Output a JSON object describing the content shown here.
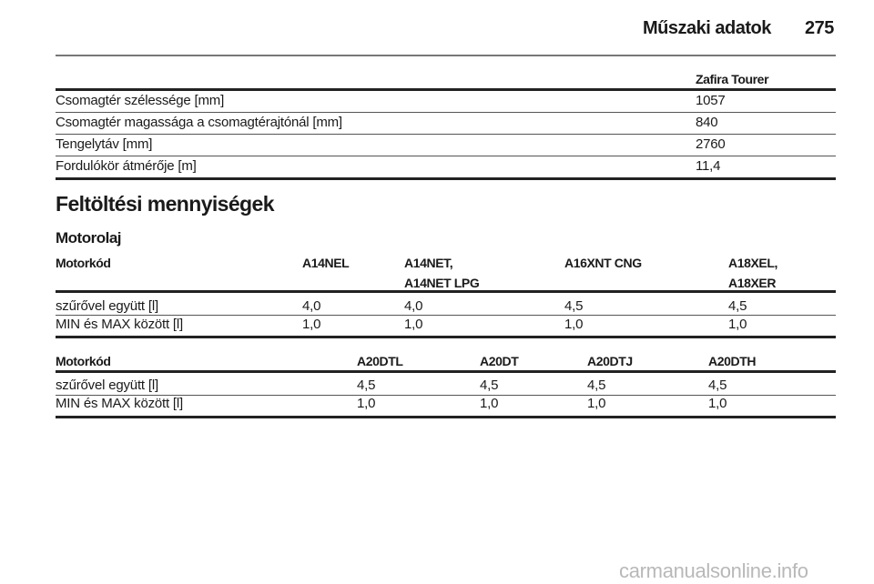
{
  "header": {
    "section_title": "Műszaki adatok",
    "page_number": "275"
  },
  "dimensions_table": {
    "column_header": "Zafira Tourer",
    "rows": [
      {
        "label": "Csomagtér szélessége [mm]",
        "value": "1057"
      },
      {
        "label": "Csomagtér magassága a csomagtérajtónál [mm]",
        "value": "840"
      },
      {
        "label": "Tengelytáv [mm]",
        "value": "2760"
      },
      {
        "label": "Fordulókör átmérője [m]",
        "value": "11,4"
      }
    ]
  },
  "section_heading": "Feltöltési mennyiségek",
  "subsection_heading": "Motorolaj",
  "oil_table_1": {
    "headers": [
      "Motorkód",
      "A14NEL",
      "A14NET,\nA14NET LPG",
      "A16XNT CNG",
      "A18XEL,\nA18XER"
    ],
    "header_lines": [
      [
        "Motorkód"
      ],
      [
        "A14NEL"
      ],
      [
        "A14NET,",
        "A14NET LPG"
      ],
      [
        "A16XNT CNG"
      ],
      [
        "A18XEL,",
        "A18XER"
      ]
    ],
    "rows": [
      [
        "szűrővel együtt [l]",
        "4,0",
        "4,0",
        "4,5",
        "4,5"
      ],
      [
        "MIN és MAX között [l]",
        "1,0",
        "1,0",
        "1,0",
        "1,0"
      ]
    ]
  },
  "oil_table_2": {
    "headers": [
      "Motorkód",
      "A20DTL",
      "A20DT",
      "A20DTJ",
      "A20DTH"
    ],
    "rows": [
      [
        "szűrővel együtt [l]",
        "4,5",
        "4,5",
        "4,5",
        "4,5"
      ],
      [
        "MIN és MAX között [l]",
        "1,0",
        "1,0",
        "1,0",
        "1,0"
      ]
    ]
  },
  "watermark": "carmanualsonline.info"
}
